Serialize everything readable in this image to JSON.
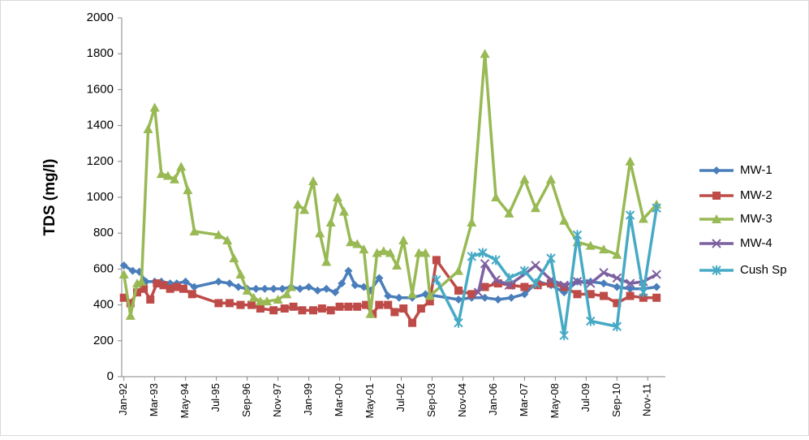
{
  "chart_data": {
    "type": "line",
    "y_label": "TDS (mg/l)",
    "xlim": [
      "1991-12",
      "2012-07"
    ],
    "xticks": [
      {
        "value": "1992-01",
        "label": "Jan-92"
      },
      {
        "value": "1993-03",
        "label": "Mar-93"
      },
      {
        "value": "1994-05",
        "label": "May-94"
      },
      {
        "value": "1995-07",
        "label": "Jul-95"
      },
      {
        "value": "1996-09",
        "label": "Sep-96"
      },
      {
        "value": "1997-11",
        "label": "Nov-97"
      },
      {
        "value": "1999-01",
        "label": "Jan-99"
      },
      {
        "value": "2000-03",
        "label": "Mar-00"
      },
      {
        "value": "2001-05",
        "label": "May-01"
      },
      {
        "value": "2002-07",
        "label": "Jul-02"
      },
      {
        "value": "2003-09",
        "label": "Sep-03"
      },
      {
        "value": "2004-11",
        "label": "Nov-04"
      },
      {
        "value": "2006-01",
        "label": "Jan-06"
      },
      {
        "value": "2007-03",
        "label": "Mar-07"
      },
      {
        "value": "2008-05",
        "label": "May-08"
      },
      {
        "value": "2009-07",
        "label": "Jul-09"
      },
      {
        "value": "2010-09",
        "label": "Sep-10"
      },
      {
        "value": "2011-11",
        "label": "Nov-11"
      }
    ],
    "ylim": [
      0,
      2000
    ],
    "yticks": [
      0,
      200,
      400,
      600,
      800,
      1000,
      1200,
      1400,
      1600,
      1800,
      2000
    ],
    "grid": false,
    "legend": "right",
    "series": [
      {
        "name": "MW-1",
        "color": "#4a7ebb",
        "marker": "diamond",
        "x": [
          "1992-01",
          "1992-05",
          "1992-08",
          "1992-11",
          "1993-03",
          "1993-06",
          "1993-10",
          "1994-01",
          "1994-05",
          "1994-09",
          "1995-08",
          "1996-01",
          "1996-05",
          "1996-09",
          "1997-01",
          "1997-05",
          "1997-09",
          "1998-01",
          "1998-05",
          "1998-09",
          "1999-01",
          "1999-05",
          "1999-09",
          "2000-01",
          "2000-04",
          "2000-07",
          "2000-10",
          "2001-02",
          "2001-05",
          "2001-09",
          "2002-01",
          "2002-06",
          "2002-12",
          "2003-06",
          "2004-09",
          "2005-03",
          "2005-09",
          "2006-03",
          "2006-09",
          "2007-03",
          "2007-09",
          "2008-03",
          "2008-09",
          "2009-03",
          "2009-09",
          "2010-03",
          "2010-09",
          "2011-03",
          "2011-09",
          "2012-03"
        ],
        "values": [
          620,
          590,
          585,
          530,
          530,
          530,
          520,
          520,
          530,
          500,
          530,
          520,
          500,
          490,
          490,
          490,
          490,
          490,
          500,
          490,
          500,
          480,
          490,
          470,
          520,
          590,
          510,
          500,
          480,
          550,
          450,
          440,
          440,
          460,
          430,
          440,
          440,
          430,
          440,
          460,
          530,
          510,
          470,
          530,
          530,
          520,
          500,
          490,
          490,
          500
        ]
      },
      {
        "name": "MW-2",
        "color": "#be4b48",
        "marker": "square",
        "x": [
          "1992-01",
          "1992-04",
          "1992-07",
          "1992-10",
          "1993-01",
          "1993-04",
          "1993-07",
          "1993-10",
          "1994-01",
          "1994-04",
          "1994-08",
          "1995-08",
          "1996-01",
          "1996-06",
          "1996-11",
          "1997-03",
          "1997-09",
          "1998-02",
          "1998-06",
          "1998-10",
          "1999-03",
          "1999-07",
          "1999-11",
          "2000-03",
          "2000-07",
          "2000-11",
          "2001-03",
          "2001-06",
          "2001-09",
          "2002-01",
          "2002-04",
          "2002-08",
          "2002-12",
          "2003-04",
          "2003-08",
          "2003-11",
          "2004-09",
          "2005-03",
          "2005-09",
          "2006-03",
          "2006-09",
          "2007-03",
          "2007-09",
          "2008-03",
          "2008-09",
          "2009-03",
          "2009-09",
          "2010-03",
          "2010-09",
          "2011-03",
          "2011-09",
          "2012-03"
        ],
        "values": [
          440,
          410,
          470,
          490,
          430,
          520,
          510,
          490,
          500,
          490,
          460,
          410,
          410,
          400,
          400,
          380,
          370,
          380,
          390,
          370,
          370,
          380,
          370,
          390,
          390,
          390,
          400,
          350,
          400,
          400,
          360,
          380,
          300,
          380,
          420,
          650,
          480,
          460,
          500,
          520,
          510,
          500,
          510,
          520,
          500,
          460,
          460,
          450,
          410,
          450,
          440,
          440
        ]
      },
      {
        "name": "MW-3",
        "color": "#98b954",
        "marker": "triangle",
        "x": [
          "1992-01",
          "1992-04",
          "1992-07",
          "1992-09",
          "1992-12",
          "1993-03",
          "1993-06",
          "1993-09",
          "1993-12",
          "1994-03",
          "1994-06",
          "1994-09",
          "1995-08",
          "1995-12",
          "1996-03",
          "1996-06",
          "1996-09",
          "1996-12",
          "1997-03",
          "1997-06",
          "1997-11",
          "1998-03",
          "1998-05",
          "1998-08",
          "1998-11",
          "1999-03",
          "1999-06",
          "1999-09",
          "1999-11",
          "2000-02",
          "2000-05",
          "2000-08",
          "2000-11",
          "2001-02",
          "2001-05",
          "2001-08",
          "2001-11",
          "2002-02",
          "2002-05",
          "2002-08",
          "2002-12",
          "2003-03",
          "2003-06",
          "2003-08",
          "2004-09",
          "2005-03",
          "2005-09",
          "2006-02",
          "2006-08",
          "2007-03",
          "2007-08",
          "2008-03",
          "2008-09",
          "2009-03",
          "2009-09",
          "2010-03",
          "2010-09",
          "2011-03",
          "2011-09",
          "2012-03"
        ],
        "values": [
          570,
          340,
          520,
          530,
          1380,
          1500,
          1130,
          1120,
          1100,
          1170,
          1040,
          810,
          790,
          760,
          660,
          570,
          480,
          440,
          420,
          420,
          430,
          460,
          500,
          960,
          930,
          1090,
          800,
          640,
          860,
          1000,
          920,
          750,
          740,
          710,
          350,
          690,
          700,
          690,
          620,
          760,
          460,
          690,
          690,
          450,
          590,
          860,
          1800,
          1000,
          910,
          1100,
          940,
          1100,
          870,
          750,
          730,
          710,
          680,
          1200,
          880,
          960
        ]
      },
      {
        "name": "MW-4",
        "color": "#7d60a0",
        "marker": "x",
        "x": [
          "2005-06",
          "2005-09",
          "2006-02",
          "2006-08",
          "2007-04",
          "2007-08",
          "2008-03",
          "2008-09",
          "2009-03",
          "2009-09",
          "2010-03",
          "2010-09",
          "2011-03",
          "2011-09",
          "2012-03"
        ],
        "values": [
          470,
          630,
          540,
          510,
          580,
          620,
          540,
          510,
          530,
          520,
          580,
          550,
          520,
          530,
          570
        ]
      },
      {
        "name": "Cush Sp",
        "color": "#46aac5",
        "marker": "star",
        "x": [
          "2003-11",
          "2004-09",
          "2005-03",
          "2005-08",
          "2006-02",
          "2006-08",
          "2007-03",
          "2007-08",
          "2008-03",
          "2008-09",
          "2009-03",
          "2009-09",
          "2010-09",
          "2011-03",
          "2011-09",
          "2012-03"
        ],
        "values": [
          540,
          300,
          670,
          690,
          650,
          550,
          590,
          520,
          660,
          230,
          790,
          310,
          280,
          900,
          470,
          940
        ]
      }
    ]
  }
}
